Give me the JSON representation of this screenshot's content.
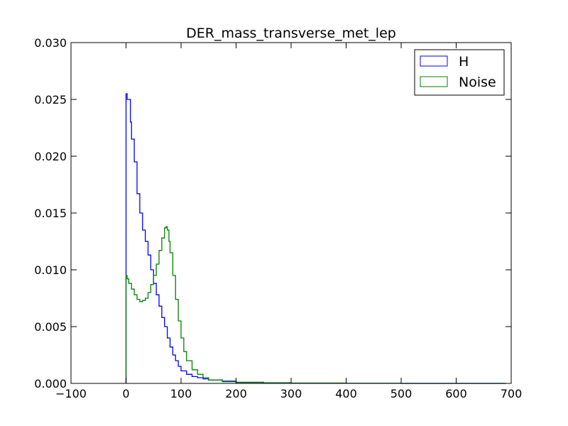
{
  "chart_data": {
    "type": "histogram",
    "title": "DER_mass_transverse_met_lep",
    "xlabel": "",
    "ylabel": "",
    "xlim": [
      -100,
      700
    ],
    "ylim": [
      0,
      0.03
    ],
    "xticks": [
      -100,
      0,
      100,
      200,
      300,
      400,
      500,
      600,
      700
    ],
    "xtick_labels": [
      "−100",
      "0",
      "100",
      "200",
      "300",
      "400",
      "500",
      "600",
      "700"
    ],
    "yticks": [
      0,
      0.005,
      0.01,
      0.015,
      0.02,
      0.025,
      0.03
    ],
    "ytick_labels": [
      "0.000",
      "0.005",
      "0.010",
      "0.015",
      "0.020",
      "0.025",
      "0.030"
    ],
    "grid": false,
    "legend_position": "top-right",
    "series": [
      {
        "name": "H",
        "color": "#0000ff",
        "x": [
          0,
          2,
          5,
          8,
          10,
          15,
          20,
          25,
          30,
          35,
          40,
          45,
          50,
          55,
          60,
          65,
          70,
          75,
          80,
          85,
          90,
          95,
          100,
          110,
          120,
          130,
          140,
          150,
          175,
          200,
          250,
          300,
          400,
          500,
          600,
          690
        ],
        "y": [
          0.0255,
          0.025,
          0.025,
          0.023,
          0.0215,
          0.0195,
          0.0167,
          0.015,
          0.0135,
          0.0125,
          0.0113,
          0.01,
          0.0088,
          0.0078,
          0.0068,
          0.0058,
          0.005,
          0.004,
          0.0032,
          0.0025,
          0.002,
          0.0015,
          0.0011,
          0.0008,
          0.0006,
          0.0005,
          0.0004,
          0.0003,
          0.0002,
          0.0001,
          5e-05,
          3e-05,
          1e-05,
          0.0,
          0.0,
          0.0
        ]
      },
      {
        "name": "Noise",
        "color": "#008000",
        "x": [
          0,
          2,
          5,
          10,
          15,
          20,
          25,
          30,
          35,
          40,
          45,
          50,
          55,
          60,
          65,
          70,
          73,
          75,
          78,
          80,
          85,
          90,
          95,
          100,
          105,
          110,
          120,
          130,
          140,
          150,
          175,
          200,
          250,
          300,
          400,
          500,
          600,
          690
        ],
        "y": [
          0.0095,
          0.0092,
          0.0088,
          0.0083,
          0.0078,
          0.0074,
          0.0072,
          0.0073,
          0.0075,
          0.008,
          0.0087,
          0.0095,
          0.0105,
          0.0117,
          0.0128,
          0.0137,
          0.0138,
          0.0135,
          0.0125,
          0.0115,
          0.0095,
          0.0074,
          0.0055,
          0.004,
          0.0028,
          0.002,
          0.0012,
          0.0008,
          0.0005,
          0.0003,
          0.00015,
          8e-05,
          4e-05,
          2e-05,
          1e-05,
          0.0,
          0.0,
          0.0
        ]
      }
    ]
  }
}
